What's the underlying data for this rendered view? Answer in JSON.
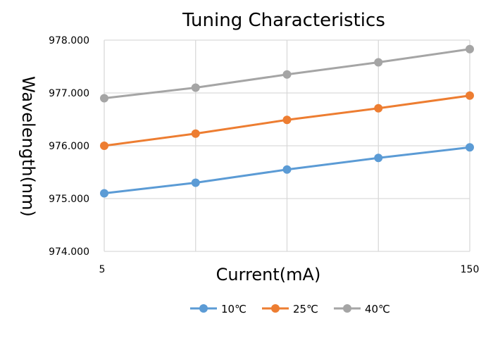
{
  "chart_data": {
    "type": "line",
    "title": "Tuning Characteristics",
    "xlabel": "Current(mA)",
    "ylabel": "Wavelength(nm)",
    "x_tick_labels": [
      "5",
      "150"
    ],
    "y_tick_labels": [
      "974.000",
      "975.000",
      "976.000",
      "977.000",
      "978.000"
    ],
    "y_ticks": [
      974,
      975,
      976,
      977,
      978
    ],
    "ylim": [
      974,
      978
    ],
    "x": [
      5,
      41.25,
      77.5,
      113.75,
      150
    ],
    "xlim": [
      5,
      150
    ],
    "grid": true,
    "legend_position": "bottom",
    "series": [
      {
        "name": "10℃",
        "color": "#5B9BD5",
        "values": [
          975.1,
          975.3,
          975.55,
          975.77,
          975.97
        ]
      },
      {
        "name": "25℃",
        "color": "#ED7D31",
        "values": [
          976.0,
          976.23,
          976.49,
          976.71,
          976.95
        ]
      },
      {
        "name": "40℃",
        "color": "#A5A5A5",
        "values": [
          976.9,
          977.1,
          977.35,
          977.58,
          977.83
        ]
      }
    ]
  }
}
